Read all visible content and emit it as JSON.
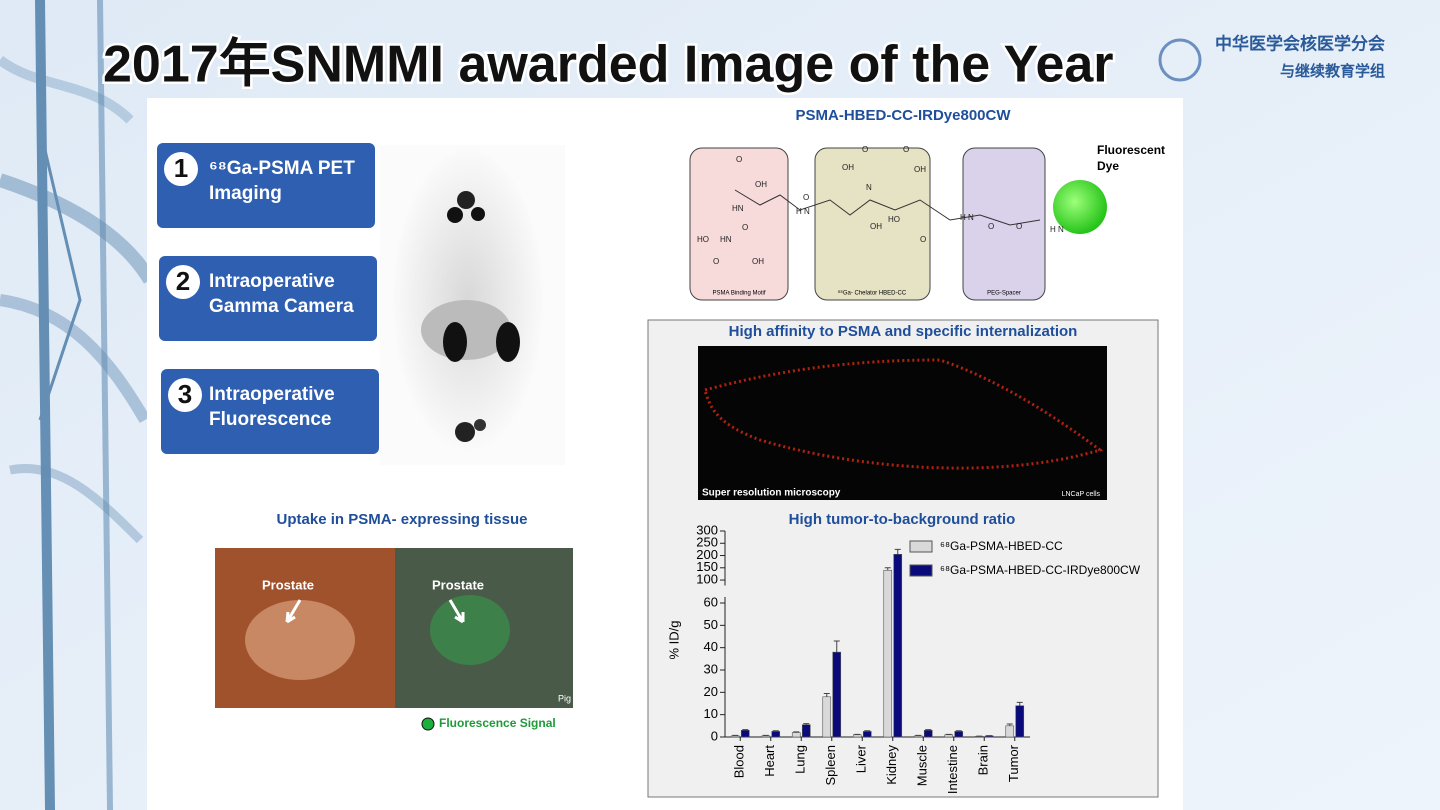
{
  "header": {
    "title": "2017年SNMMI awarded Image of the Year",
    "logo": [
      "中华医学会核医学分会",
      "与继续教育学组"
    ]
  },
  "steps": [
    {
      "number": "1",
      "lines": [
        "⁶⁸Ga-PSMA PET",
        "Imaging"
      ]
    },
    {
      "number": "2",
      "lines": [
        "Intraoperative",
        "Gamma Camera"
      ]
    },
    {
      "number": "3",
      "lines": [
        "Intraoperative",
        "Fluorescence"
      ]
    }
  ],
  "surgery": {
    "caption": "Uptake in PSMA- expressing tissue",
    "labels": [
      "Prostate",
      "Prostate"
    ],
    "corner": "Pig",
    "legend": "Fluorescence Signal"
  },
  "molecule": {
    "title": "PSMA-HBED-CC-IRDye800CW",
    "parts": [
      "PSMA Binding Motif",
      "⁶⁸Ga- Chelator HBED-CC",
      "PEG-Spacer"
    ],
    "dye": [
      "Fluorescent",
      "Dye"
    ],
    "atoms": [
      "O",
      "OH",
      "HN",
      "O",
      "HN",
      "HO",
      "O",
      "OH",
      "O",
      "H N",
      "O",
      "OH",
      "N",
      "O",
      "OH",
      "OH",
      "HO",
      "O",
      "H N",
      "O",
      "O",
      "H N"
    ]
  },
  "microscopy": {
    "title": "High affinity to PSMA and specific internalization",
    "caption": "Super resolution microscopy",
    "cells": "LNCaP cells"
  },
  "chart_data": {
    "type": "bar",
    "title": "High tumor-to-background ratio",
    "y_label": "% ID/g",
    "categories": [
      "Blood",
      "Heart",
      "Lung",
      "Spleen",
      "Liver",
      "Kidney",
      "Muscle",
      "Intestine",
      "Brain",
      "Tumor"
    ],
    "series": [
      {
        "name": "⁶⁸Ga-PSMA-HBED-CC",
        "color": "#d9d9d9",
        "values": [
          0.5,
          0.5,
          2,
          18,
          1,
          140,
          0.5,
          1,
          0.3,
          5
        ],
        "errors": [
          0.2,
          0.2,
          0.3,
          1.5,
          0.2,
          10,
          0.2,
          0.2,
          0.1,
          0.8
        ]
      },
      {
        "name": "⁶⁸Ga-PSMA-HBED-CC-IRDye800CW",
        "color": "#0a0a7a",
        "values": [
          3,
          2.5,
          5.5,
          38,
          2.5,
          205,
          3,
          2.5,
          0.5,
          14
        ],
        "errors": [
          0.3,
          0.3,
          0.5,
          5,
          0.3,
          20,
          0.3,
          0.3,
          0.1,
          1.5
        ]
      }
    ],
    "ylim": [
      0,
      60
    ],
    "yticks": [
      0,
      10,
      20,
      30,
      40,
      50,
      60
    ],
    "upper_ylim": [
      90,
      300
    ],
    "upper_yticks": [
      100,
      150,
      200,
      250,
      300
    ],
    "y_break": true
  }
}
